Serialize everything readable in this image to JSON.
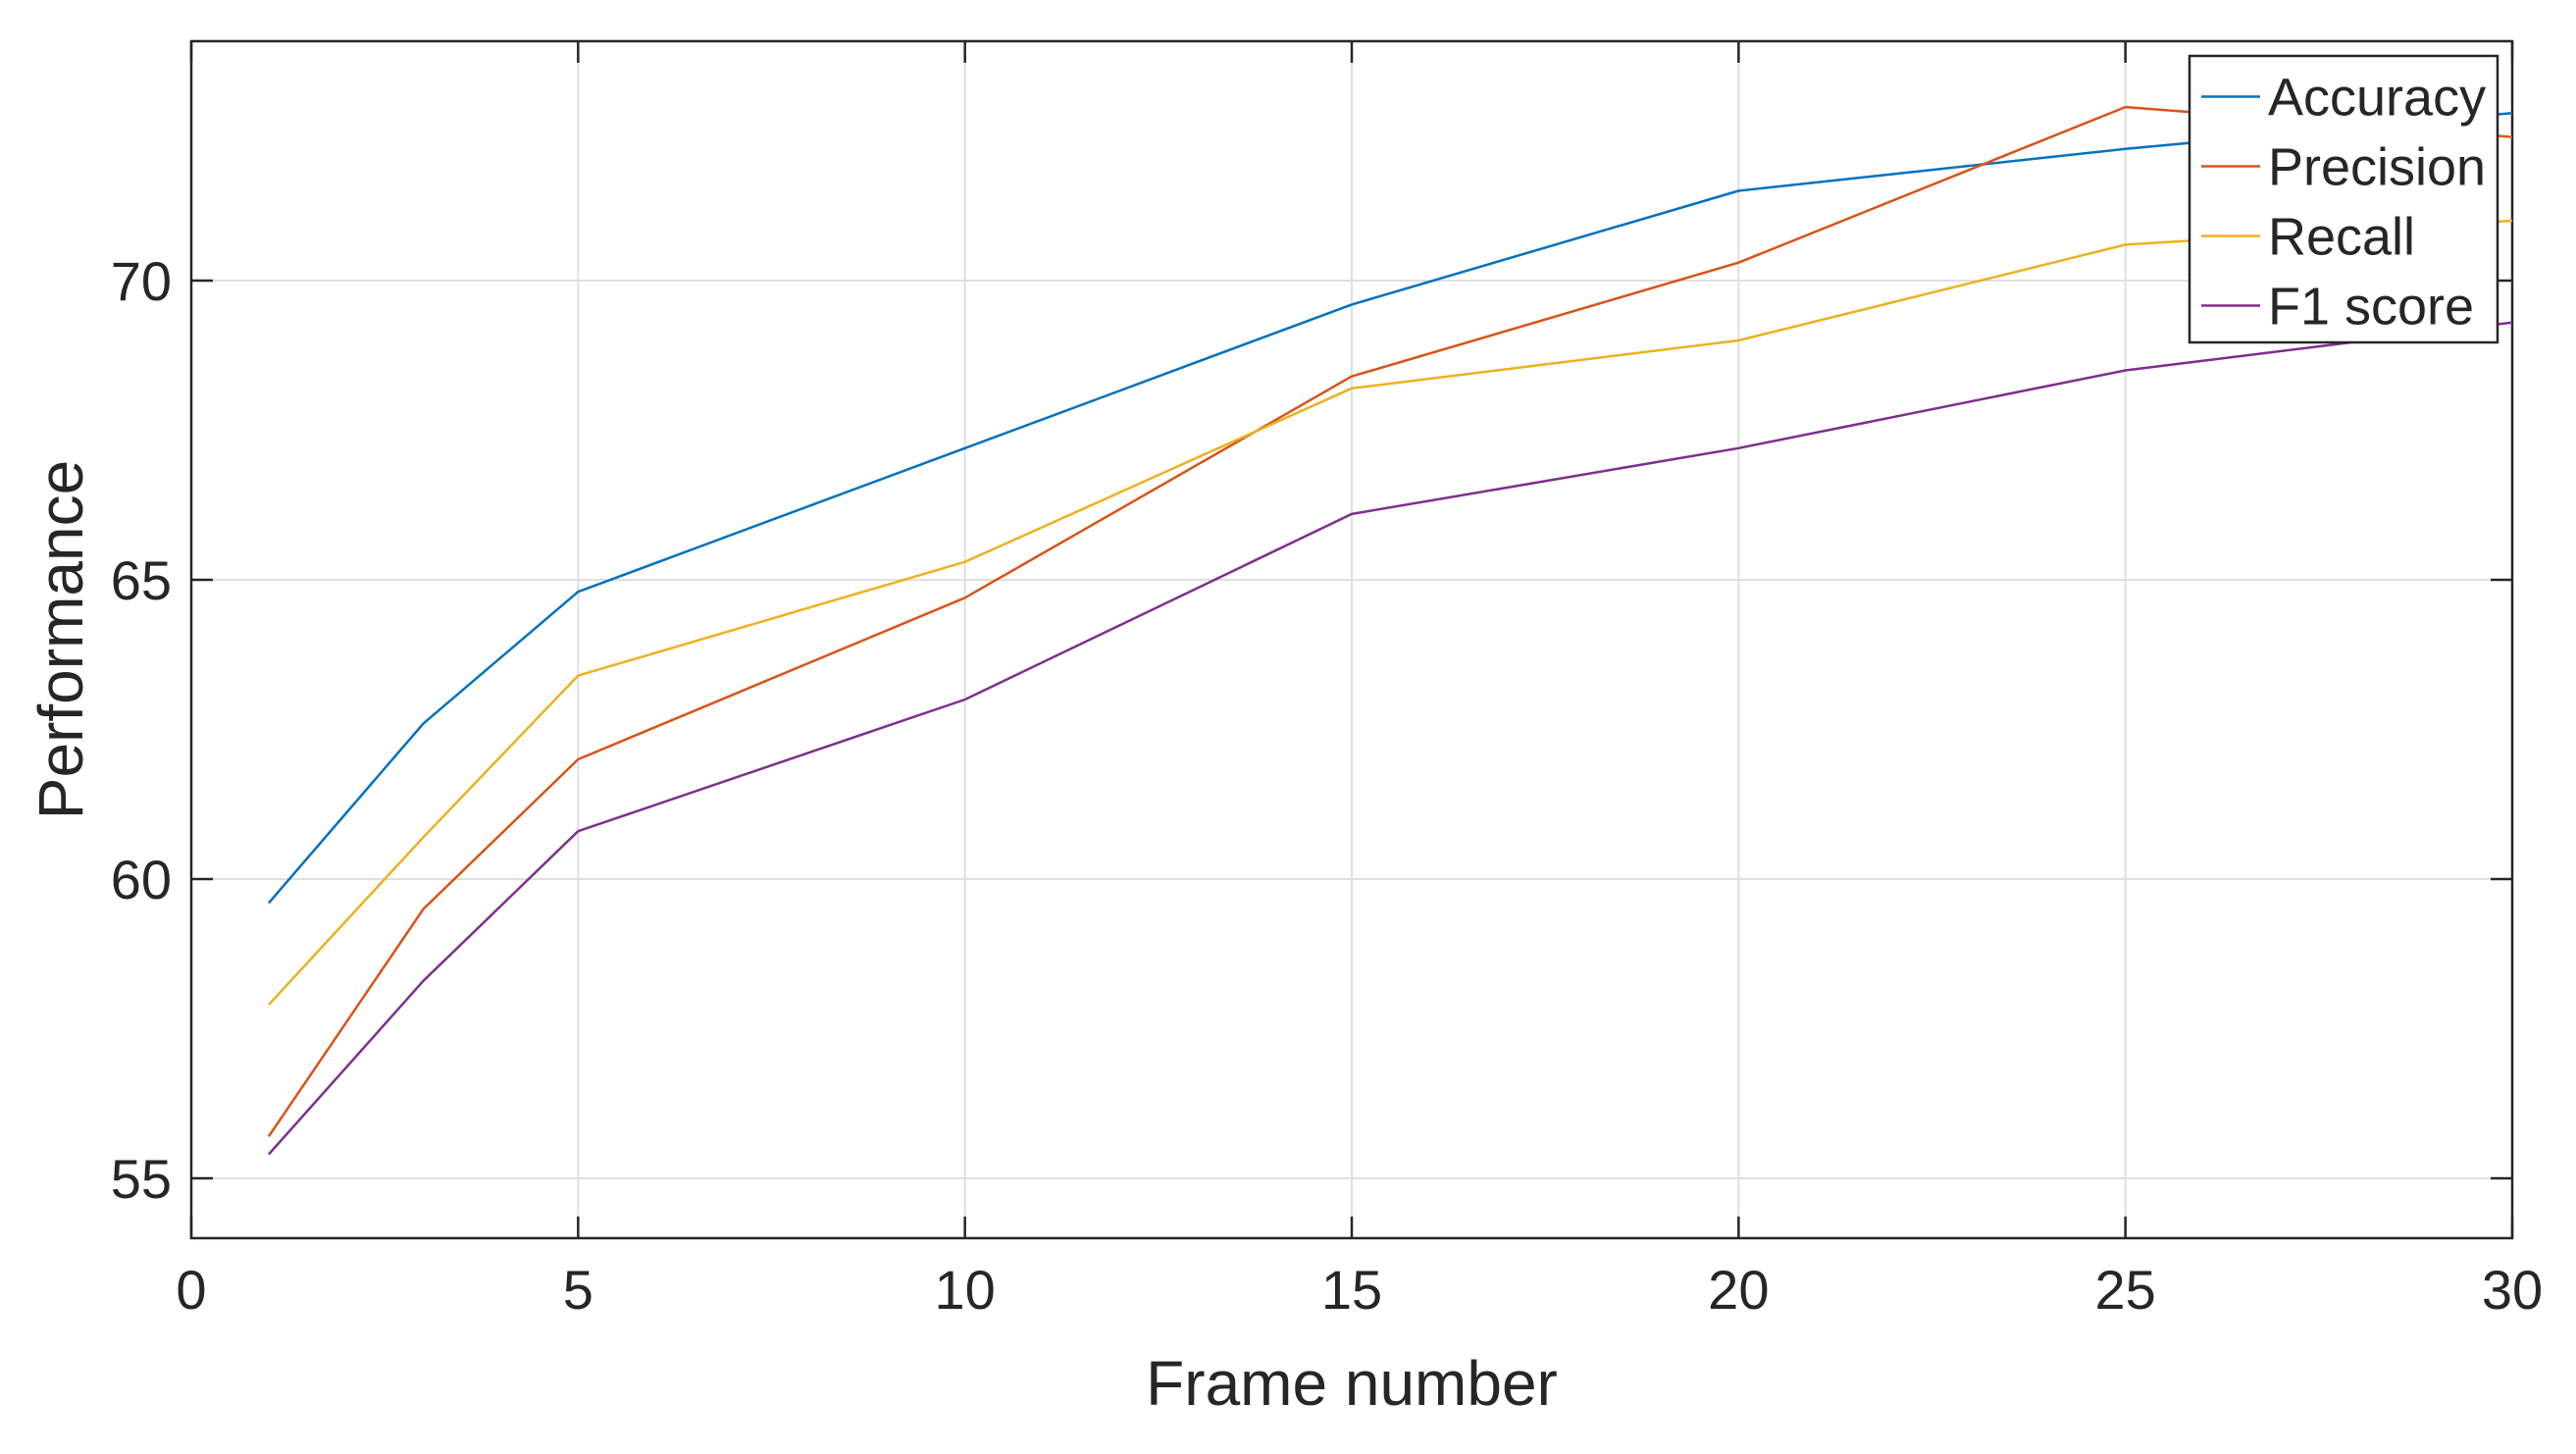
{
  "chart_data": {
    "type": "line",
    "xlabel": "Frame number",
    "ylabel": "Performance",
    "xlim": [
      0,
      30
    ],
    "ylim": [
      54,
      74
    ],
    "xticks": [
      0,
      5,
      10,
      15,
      20,
      25,
      30
    ],
    "xtick_labels": [
      "0",
      "5",
      "10",
      "15",
      "20",
      "25",
      "30"
    ],
    "yticks": [
      55,
      60,
      65,
      70
    ],
    "ytick_labels": [
      "55",
      "60",
      "65",
      "70"
    ],
    "grid": true,
    "legend_position": "top-right",
    "x": [
      1,
      3,
      5,
      10,
      15,
      20,
      25,
      30
    ],
    "series": [
      {
        "name": "Accuracy",
        "color": "#0072BD",
        "values": [
          59.6,
          62.6,
          64.8,
          67.2,
          69.6,
          71.5,
          72.2,
          72.8
        ]
      },
      {
        "name": "Precision",
        "color": "#D95319",
        "values": [
          55.7,
          59.5,
          62.0,
          64.7,
          68.4,
          70.3,
          72.9,
          72.4
        ]
      },
      {
        "name": "Recall",
        "color": "#EDB120",
        "values": [
          57.9,
          60.7,
          63.4,
          65.3,
          68.2,
          69.0,
          70.6,
          71.0
        ]
      },
      {
        "name": "F1 score",
        "color": "#7E2F8E",
        "values": [
          55.4,
          58.3,
          60.8,
          63.0,
          66.1,
          67.2,
          68.5,
          69.3
        ]
      }
    ]
  }
}
